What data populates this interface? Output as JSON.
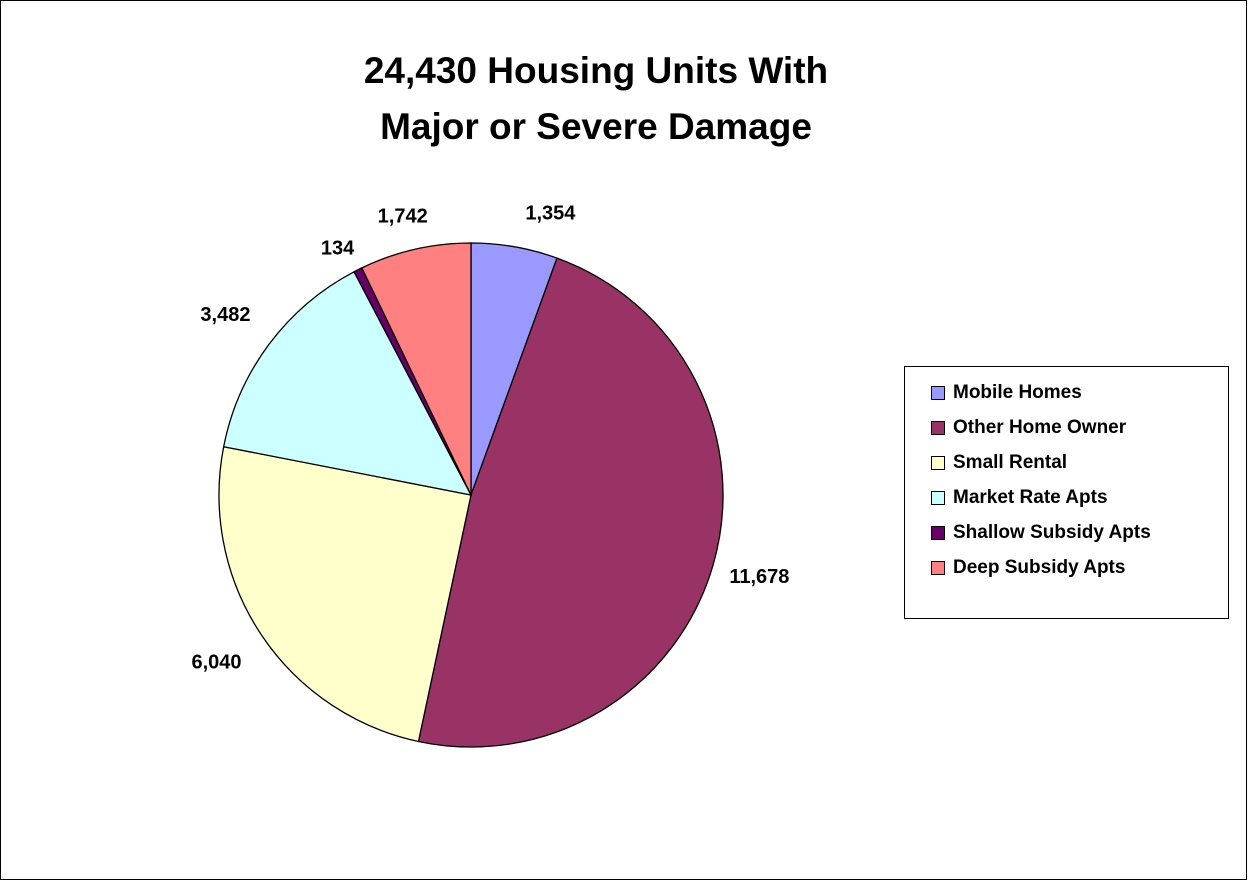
{
  "chart_data": {
    "type": "pie",
    "title": [
      "24,430 Housing Units With",
      "Major or Severe Damage"
    ],
    "legend_position": "right",
    "slices": [
      {
        "name": "Mobile Homes",
        "value": 1354,
        "label": "1,354",
        "color": "#9999FF"
      },
      {
        "name": "Other Home Owner",
        "value": 11678,
        "label": "11,678",
        "color": "#993366"
      },
      {
        "name": "Small Rental",
        "value": 6040,
        "label": "6,040",
        "color": "#FFFFCC"
      },
      {
        "name": "Market Rate Apts",
        "value": 3482,
        "label": "3,482",
        "color": "#CCFFFF"
      },
      {
        "name": "Shallow Subsidy Apts",
        "value": 134,
        "label": "134",
        "color": "#660066"
      },
      {
        "name": "Deep Subsidy Apts",
        "value": 1742,
        "label": "1,742",
        "color": "#FF8080"
      }
    ]
  }
}
